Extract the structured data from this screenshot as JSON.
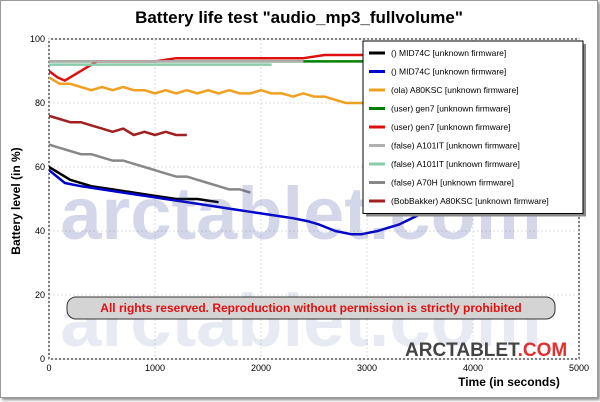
{
  "chart_data": {
    "type": "line",
    "title": "Battery life test \"audio_mp3_fullvolume\"",
    "xlabel": "Time (in seconds)",
    "ylabel": "Battery level (in %)",
    "xlim": [
      0,
      5000
    ],
    "ylim": [
      0,
      100
    ],
    "x_ticks": [
      0,
      1000,
      2000,
      3000,
      4000,
      5000
    ],
    "y_ticks": [
      0,
      20,
      40,
      60,
      80,
      100
    ],
    "grid": true,
    "legend_position": "top-right",
    "notice": "All rights reserved. Reproduction without permission is strictly prohibited",
    "watermark": "arctablet.com",
    "brand": {
      "main": "ARCTABLET",
      "suffix": ".COM"
    },
    "series": [
      {
        "name": "() MID74C [unknown firmware]",
        "color": "#000000",
        "points": [
          [
            0,
            60
          ],
          [
            200,
            56
          ],
          [
            400,
            54
          ],
          [
            600,
            53
          ],
          [
            800,
            52
          ],
          [
            1000,
            51
          ],
          [
            1200,
            50
          ],
          [
            1400,
            50
          ],
          [
            1600,
            49
          ]
        ]
      },
      {
        "name": "() MID74C [unknown firmware]",
        "color": "#0000cc",
        "points": [
          [
            0,
            59
          ],
          [
            150,
            55
          ],
          [
            300,
            54
          ],
          [
            500,
            53
          ],
          [
            700,
            52
          ],
          [
            900,
            51
          ],
          [
            1100,
            50
          ],
          [
            1300,
            49
          ],
          [
            1500,
            48
          ],
          [
            1700,
            47
          ],
          [
            1900,
            46
          ],
          [
            2100,
            45
          ],
          [
            2300,
            44
          ],
          [
            2450,
            43
          ],
          [
            2550,
            42
          ],
          [
            2700,
            40
          ],
          [
            2850,
            39
          ],
          [
            2950,
            39
          ],
          [
            3100,
            40
          ],
          [
            3300,
            42
          ],
          [
            3550,
            46
          ]
        ]
      },
      {
        "name": "(ola) A80KSC [unknown firmware]",
        "color": "#f0a020",
        "points": [
          [
            0,
            88
          ],
          [
            100,
            86
          ],
          [
            200,
            86
          ],
          [
            300,
            85
          ],
          [
            400,
            84
          ],
          [
            500,
            85
          ],
          [
            600,
            84
          ],
          [
            700,
            85
          ],
          [
            800,
            84
          ],
          [
            900,
            84
          ],
          [
            1000,
            83
          ],
          [
            1100,
            84
          ],
          [
            1200,
            83
          ],
          [
            1300,
            84
          ],
          [
            1400,
            83
          ],
          [
            1500,
            84
          ],
          [
            1600,
            83
          ],
          [
            1700,
            84
          ],
          [
            1800,
            83
          ],
          [
            1900,
            83
          ],
          [
            2000,
            84
          ],
          [
            2100,
            83
          ],
          [
            2200,
            83
          ],
          [
            2300,
            82
          ],
          [
            2400,
            83
          ],
          [
            2500,
            82
          ],
          [
            2600,
            82
          ],
          [
            2700,
            81
          ],
          [
            2800,
            80
          ],
          [
            2900,
            80
          ],
          [
            3000,
            80
          ],
          [
            3100,
            81
          ],
          [
            3200,
            81
          ]
        ]
      },
      {
        "name": "(user) gen7 [unknown firmware]",
        "color": "#008000",
        "points": [
          [
            0,
            93
          ],
          [
            300,
            93
          ],
          [
            600,
            93
          ],
          [
            900,
            93
          ],
          [
            1200,
            93
          ],
          [
            1500,
            93
          ],
          [
            1800,
            93
          ],
          [
            2100,
            93
          ],
          [
            2400,
            93
          ],
          [
            2700,
            93
          ],
          [
            3000,
            93
          ]
        ]
      },
      {
        "name": "(user) gen7 [unknown firmware]",
        "color": "#dd1010",
        "points": [
          [
            0,
            90
          ],
          [
            80,
            88
          ],
          [
            150,
            87
          ],
          [
            250,
            89
          ],
          [
            350,
            91
          ],
          [
            450,
            93
          ],
          [
            600,
            93
          ],
          [
            800,
            93
          ],
          [
            1000,
            93
          ],
          [
            1200,
            94
          ],
          [
            1400,
            94
          ],
          [
            1600,
            94
          ],
          [
            1800,
            94
          ],
          [
            2000,
            94
          ],
          [
            2200,
            94
          ],
          [
            2400,
            94
          ],
          [
            2600,
            95
          ],
          [
            2800,
            95
          ],
          [
            3000,
            95
          ],
          [
            3200,
            95
          ]
        ]
      },
      {
        "name": "(false) A101IT [unknown firmware]",
        "color": "#b0b0b0",
        "points": [
          [
            0,
            93
          ],
          [
            500,
            93
          ],
          [
            1000,
            93
          ],
          [
            1500,
            93
          ],
          [
            2000,
            93
          ],
          [
            2400,
            93
          ]
        ]
      },
      {
        "name": "(false) A101IT [unknown firmware]",
        "color": "#88ccaa",
        "points": [
          [
            0,
            92
          ],
          [
            500,
            92
          ],
          [
            1000,
            92
          ],
          [
            1500,
            92
          ],
          [
            2000,
            92
          ],
          [
            2100,
            92
          ]
        ]
      },
      {
        "name": "(false) A70H [unknown firmware]",
        "color": "#888888",
        "points": [
          [
            0,
            67
          ],
          [
            100,
            66
          ],
          [
            200,
            65
          ],
          [
            300,
            64
          ],
          [
            400,
            64
          ],
          [
            500,
            63
          ],
          [
            600,
            62
          ],
          [
            700,
            62
          ],
          [
            800,
            61
          ],
          [
            900,
            60
          ],
          [
            1000,
            59
          ],
          [
            1100,
            58
          ],
          [
            1200,
            57
          ],
          [
            1300,
            57
          ],
          [
            1400,
            56
          ],
          [
            1500,
            55
          ],
          [
            1600,
            54
          ],
          [
            1700,
            53
          ],
          [
            1800,
            53
          ],
          [
            1900,
            52
          ]
        ]
      },
      {
        "name": "(BobBakker) A80KSC [unknown firmware]",
        "color": "#a02020",
        "points": [
          [
            0,
            76
          ],
          [
            100,
            75
          ],
          [
            200,
            74
          ],
          [
            300,
            74
          ],
          [
            400,
            73
          ],
          [
            500,
            72
          ],
          [
            600,
            71
          ],
          [
            700,
            72
          ],
          [
            800,
            70
          ],
          [
            900,
            71
          ],
          [
            1000,
            70
          ],
          [
            1100,
            71
          ],
          [
            1200,
            70
          ],
          [
            1300,
            70
          ]
        ]
      }
    ]
  }
}
